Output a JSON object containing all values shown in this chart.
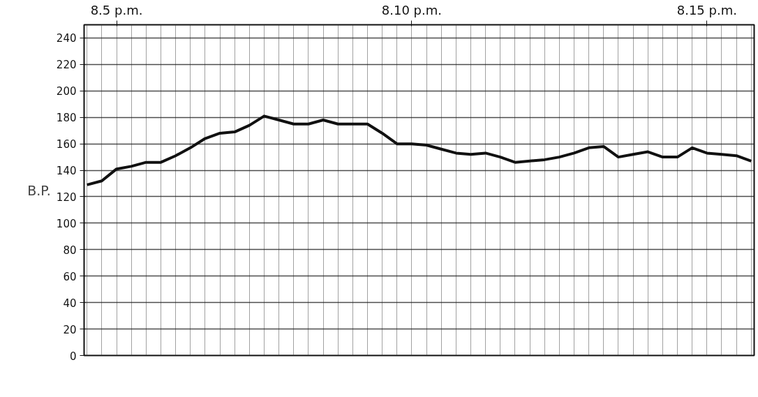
{
  "chart_data": {
    "type": "line",
    "ylabel": "B.P.",
    "categories": [
      null,
      null,
      "8.5 p.m.",
      null,
      null,
      null,
      null,
      null,
      null,
      null,
      null,
      null,
      null,
      null,
      null,
      null,
      null,
      null,
      null,
      null,
      null,
      null,
      "8.10 p.m.",
      null,
      null,
      null,
      null,
      null,
      null,
      null,
      null,
      null,
      null,
      null,
      null,
      null,
      null,
      null,
      null,
      null,
      null,
      null,
      "8.15 p.m.",
      null,
      null,
      null
    ],
    "ylim": [
      0,
      250
    ],
    "yticks": [
      0,
      20,
      40,
      60,
      80,
      100,
      120,
      140,
      160,
      180,
      200,
      220,
      240
    ],
    "grid": true,
    "marker": "none",
    "line_style": "solid",
    "series": [
      {
        "color": "#111111",
        "values": [
          129,
          132,
          141,
          143,
          146,
          146,
          151,
          157,
          164,
          168,
          169,
          174,
          181,
          178,
          175,
          175,
          178,
          175,
          175,
          175,
          168,
          160,
          160,
          159,
          156,
          153,
          152,
          153,
          150,
          146,
          147,
          148,
          150,
          153,
          157,
          158,
          150,
          152,
          154,
          150,
          150,
          157,
          153,
          152,
          151,
          147
        ]
      }
    ]
  }
}
